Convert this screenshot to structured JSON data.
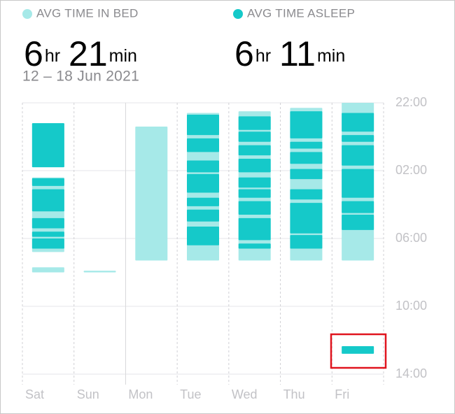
{
  "chart_data": {
    "type": "sleep-range",
    "subtitle": "12 – 18 Jun 2021",
    "categories": [
      "Sat",
      "Sun",
      "Mon",
      "Tue",
      "Wed",
      "Thu",
      "Fri"
    ],
    "series": [
      {
        "name": "AVG TIME IN BED",
        "color": "#a6e9e8",
        "hours": 6,
        "hours_unit": "hr",
        "minutes": 21,
        "minutes_unit": "min",
        "values": [
          [
            [
              23.2,
              25.8
            ],
            [
              26.4,
              30.8
            ],
            [
              31.7,
              32.0
            ]
          ],
          [
            [
              31.9,
              32.0
            ]
          ],
          [
            [
              23.4,
              31.3
            ]
          ],
          [
            [
              22.6,
              31.3
            ]
          ],
          [
            [
              22.5,
              31.3
            ]
          ],
          [
            [
              22.3,
              31.3
            ]
          ],
          [
            [
              22.0,
              31.3
            ]
          ]
        ]
      },
      {
        "name": "AVG TIME ASLEEP",
        "color": "#15c9c9",
        "hours": 6,
        "hours_unit": "hr",
        "minutes": 11,
        "minutes_unit": "min",
        "values": [
          [
            [
              23.2,
              25.8
            ],
            [
              26.45,
              26.9
            ],
            [
              27.1,
              28.4
            ],
            [
              28.8,
              29.4
            ],
            [
              29.6,
              29.9
            ],
            [
              30.0,
              30.6
            ]
          ],
          [],
          [],
          [
            [
              22.7,
              23.9
            ],
            [
              24.1,
              24.9
            ],
            [
              25.4,
              26.1
            ],
            [
              26.2,
              27.3
            ],
            [
              27.6,
              28.1
            ],
            [
              28.3,
              29.0
            ],
            [
              29.3,
              30.4
            ]
          ],
          [
            [
              22.8,
              23.6
            ],
            [
              23.7,
              24.3
            ],
            [
              24.5,
              25.1
            ],
            [
              25.3,
              26.1
            ],
            [
              26.4,
              27.0
            ],
            [
              27.1,
              27.6
            ],
            [
              27.8,
              28.6
            ],
            [
              28.8,
              30.1
            ],
            [
              30.3,
              30.6
            ]
          ],
          [
            [
              22.5,
              24.1
            ],
            [
              24.3,
              24.7
            ],
            [
              24.9,
              25.6
            ],
            [
              25.9,
              26.5
            ],
            [
              27.1,
              27.7
            ],
            [
              27.9,
              29.7
            ],
            [
              29.8,
              30.6
            ]
          ],
          [
            [
              22.6,
              23.7
            ],
            [
              23.9,
              24.3
            ],
            [
              24.5,
              25.7
            ],
            [
              25.9,
              27.6
            ],
            [
              27.8,
              28.5
            ],
            [
              28.6,
              29.5
            ],
            [
              36.35,
              36.8
            ]
          ]
        ]
      }
    ],
    "ylim": [
      22,
      38
    ],
    "yticks": [
      {
        "value": 22,
        "label": "22:00"
      },
      {
        "value": 26,
        "label": "02:00"
      },
      {
        "value": 30,
        "label": "06:00"
      },
      {
        "value": 34,
        "label": "10:00"
      },
      {
        "value": 38,
        "label": "14:00"
      }
    ],
    "grid": true
  }
}
